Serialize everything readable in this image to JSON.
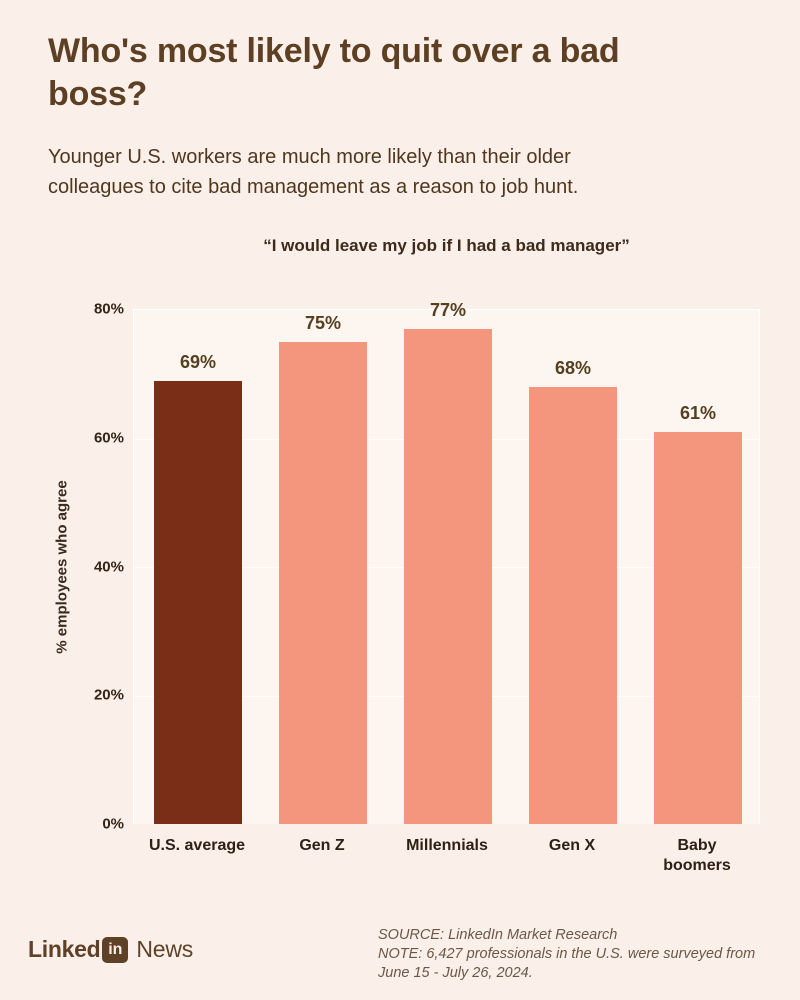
{
  "page": {
    "title": "Who's most likely to quit over a bad boss?",
    "subtitle": "Younger U.S. workers are much more likely than their older colleagues to cite bad management as a reason to job hunt.",
    "background_color": "#FBEFE9"
  },
  "chart_data": {
    "type": "bar",
    "title": "“I would leave my job if I had a bad manager”",
    "xlabel": "",
    "ylabel": "% employees who agree",
    "categories": [
      "U.S. average",
      "Gen Z",
      "Millennials",
      "Gen X",
      "Baby boomers"
    ],
    "category_display": [
      "U.S. average",
      "Gen Z",
      "Millennials",
      "Gen X",
      "Baby\nboomers"
    ],
    "values": [
      69,
      75,
      77,
      68,
      61
    ],
    "value_labels": [
      "69%",
      "75%",
      "77%",
      "68%",
      "61%"
    ],
    "ylim": [
      0,
      80
    ],
    "yticks": [
      "0%",
      "20%",
      "40%",
      "60%",
      "80%"
    ],
    "grid": true,
    "legend": false,
    "bar_colors": [
      "#7A2D17",
      "#F3967D",
      "#F3967D",
      "#F3967D",
      "#F3967D"
    ],
    "highlight_color": "#7A2D17",
    "series_color": "#F3967D"
  },
  "footer": {
    "logo": {
      "linked": "Linked",
      "in": "in",
      "news": "News"
    },
    "source_line1": "SOURCE: LinkedIn Market Research",
    "source_line2": "NOTE: 6,427 professionals in the U.S. were surveyed from",
    "source_line3": "June 15 - July 26, 2024."
  }
}
